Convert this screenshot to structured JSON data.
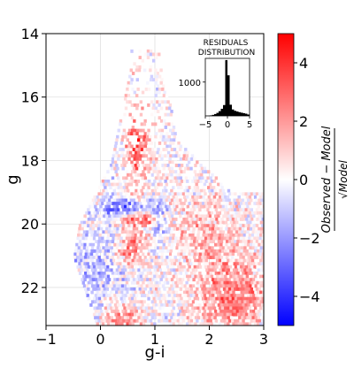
{
  "chart_data": {
    "type": "heatmap",
    "xlabel": "g-i",
    "ylabel": "g",
    "xlim": [
      -1,
      3
    ],
    "ylim": [
      23.2,
      14
    ],
    "y_inverted": true,
    "grid": true,
    "x_ticks": [
      -1,
      0,
      1,
      2,
      3
    ],
    "x_tick_labels": [
      "−1",
      "0",
      "1",
      "2",
      "3"
    ],
    "y_ticks": [
      14,
      16,
      18,
      20,
      22
    ],
    "y_tick_labels": [
      "14",
      "16",
      "18",
      "20",
      "22"
    ],
    "colorbar": {
      "label_top": "Observed − Model",
      "label_bottom": "√Model",
      "range": [
        -5,
        5
      ],
      "ticks": [
        -4,
        -2,
        0,
        2,
        4
      ],
      "tick_labels": [
        "−4",
        "−2",
        "0",
        "2",
        "4"
      ],
      "colormap": "bwr",
      "colors": [
        "#0000ff",
        "#ffffff",
        "#ff0000"
      ]
    },
    "inset": {
      "type": "bar",
      "title_line1": "RESIDUALS",
      "title_line2": "DISTRIBUTION",
      "xlim": [
        -5,
        5
      ],
      "ylim": [
        0,
        1700
      ],
      "x_ticks": [
        -5,
        0,
        5
      ],
      "x_tick_labels": [
        "−5",
        "0",
        "5"
      ],
      "y_ticks": [
        1000
      ],
      "y_tick_labels": [
        "1000"
      ],
      "bin_edges_start": -5,
      "bin_width": 0.5,
      "values": [
        2,
        5,
        15,
        30,
        55,
        90,
        140,
        210,
        320,
        1650,
        1200,
        330,
        190,
        150,
        130,
        110,
        95,
        80,
        65,
        40
      ],
      "bar_color": "#000000"
    },
    "cell_size": {
      "dx": 0.05,
      "dy": 0.1
    },
    "clusters": [
      {
        "name": "upper-red-branch",
        "x": 0.65,
        "y": 17.5,
        "sx": 0.15,
        "sy": 1.0,
        "amp": 3.0
      },
      {
        "name": "blue-horizontal-band",
        "x": 0.4,
        "y": 19.45,
        "sx": 0.3,
        "sy": 0.18,
        "amp": -3.2
      },
      {
        "name": "red-band-below",
        "x": 0.75,
        "y": 19.8,
        "sx": 0.3,
        "sy": 0.15,
        "amp": 3.2
      },
      {
        "name": "blue-diagonal-strip",
        "x": 1.05,
        "y": 19.8,
        "sx": 0.1,
        "sy": 0.35,
        "amp": -2.6
      },
      {
        "name": "red-mid-left",
        "x": 0.55,
        "y": 20.7,
        "sx": 0.2,
        "sy": 0.35,
        "amp": 3.0
      },
      {
        "name": "blue-left-sequence",
        "x": -0.1,
        "y": 21.3,
        "sx": 0.35,
        "sy": 0.9,
        "amp": -1.4
      },
      {
        "name": "red-bottom-left",
        "x": 0.4,
        "y": 22.9,
        "sx": 0.25,
        "sy": 0.3,
        "amp": 2.4
      },
      {
        "name": "red-right-field",
        "x": 2.4,
        "y": 22.2,
        "sx": 0.45,
        "sy": 0.9,
        "amp": 2.6
      },
      {
        "name": "red-right-mid",
        "x": 1.9,
        "y": 20.3,
        "sx": 0.35,
        "sy": 0.8,
        "amp": 1.5
      }
    ]
  }
}
